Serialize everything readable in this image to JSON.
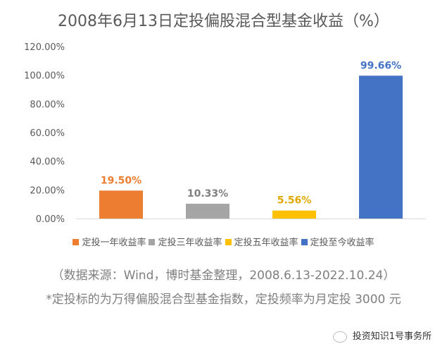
{
  "chart_data": {
    "type": "bar",
    "title": "2008年6月13日定投偏股混合型基金收益（%）",
    "categories": [
      "定投一年收益率",
      "定投三年收益率",
      "定投五年收益率",
      "定投至今收益率"
    ],
    "values": [
      19.5,
      10.33,
      5.56,
      99.66
    ],
    "data_labels": [
      "19.50%",
      "10.33%",
      "5.56%",
      "99.66%"
    ],
    "colors": [
      "#ED7D31",
      "#A5A5A5",
      "#FFC000",
      "#4472C4"
    ],
    "label_colors": [
      "#ED7D31",
      "#7f7f7f",
      "#E0A800",
      "#4472C4"
    ],
    "yticks": [
      "0.00%",
      "20.00%",
      "40.00%",
      "60.00%",
      "80.00%",
      "100.00%",
      "120.00%"
    ],
    "ytick_values": [
      0,
      20,
      40,
      60,
      80,
      100,
      120
    ],
    "ylim": [
      0,
      120
    ],
    "xlabel": "",
    "ylabel": "",
    "grid": false,
    "legend": "bottom"
  },
  "source_note": "（数据来源：Wind，博时基金整理，2008.6.13-2022.10.24）",
  "footnote": "*定投标的为万得偏股混合型基金指数，定投频率为月定投 3000 元",
  "watermark": "投资知识1号事务所"
}
